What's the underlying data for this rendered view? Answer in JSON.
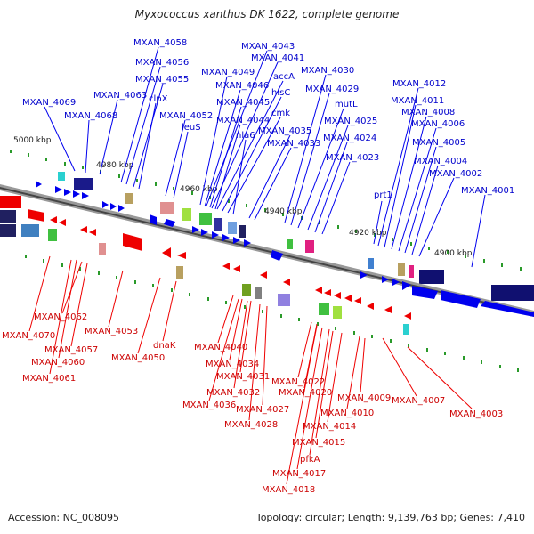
{
  "title": "Myxococcus xanthus DK 1622, complete genome",
  "accession": "Accession: NC_008095",
  "summary": "Topology: circular; Length: 9,139,763 bp; Genes: 7,410",
  "colors": {
    "forward": "#0000ee",
    "reverse": "#ee0000",
    "backbone": "#999999",
    "ticks": "#2a9a2a"
  },
  "kbp_labels": [
    "5000 kbp",
    "4980 kbp",
    "4960 kbp",
    "4940 kbp",
    "4920 kbp",
    "4900 kbp"
  ],
  "forward_labels": [
    "MXAN_4058",
    "MXAN_4056",
    "MXAN_4055",
    "MXAN_4063",
    "clpX",
    "MXAN_4069",
    "MXAN_4068",
    "MXAN_4052",
    "leuS",
    "MXAN_4043",
    "MXAN_4041",
    "MXAN_4049",
    "accA",
    "MXAN_4046",
    "hisC",
    "MXAN_4045",
    "cmk",
    "MXAN_4044",
    "nla6",
    "MXAN_4035",
    "MXAN_4033",
    "MXAN_4030",
    "MXAN_4029",
    "mutL",
    "MXAN_4025",
    "MXAN_4024",
    "MXAN_4023",
    "MXAN_4012",
    "MXAN_4011",
    "MXAN_4008",
    "MXAN_4006",
    "MXAN_4005",
    "MXAN_4004",
    "MXAN_4002",
    "MXAN_4001",
    "prt1"
  ],
  "reverse_labels": [
    "MXAN_4062",
    "MXAN_4070",
    "MXAN_4057",
    "MXAN_4060",
    "MXAN_4061",
    "MXAN_4053",
    "dnaK",
    "MXAN_4050",
    "MXAN_4040",
    "MXAN_4034",
    "MXAN_4031",
    "MXAN_4032",
    "MXAN_4036",
    "MXAN_4027",
    "MXAN_4028",
    "MXAN_4022",
    "MXAN_4020",
    "MXAN_4009",
    "MXAN_4010",
    "MXAN_4014",
    "MXAN_4015",
    "pfkA",
    "MXAN_4017",
    "MXAN_4018",
    "MXAN_4007",
    "MXAN_4003"
  ]
}
